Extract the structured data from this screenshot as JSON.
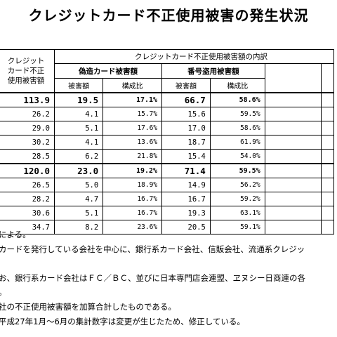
{
  "title": "クレジットカード不正使用被害の発生状況",
  "header": {
    "total_label": "クレジット\nカード不正\n使用被害額",
    "group_label": "クレジットカード不正使用被害額の内訳",
    "forged_label": "偽造カード被害額",
    "stolen_label": "番号盗用被害額",
    "amount_label": "被害額",
    "ratio_label": "構成比"
  },
  "rows": [
    {
      "total": "113.9",
      "forged": "19.5",
      "forged_pct": "17.1%",
      "stolen": "66.7",
      "stolen_pct": "58.6%"
    },
    {
      "total": "26.2",
      "forged": "4.1",
      "forged_pct": "15.7%",
      "stolen": "15.6",
      "stolen_pct": "59.5%"
    },
    {
      "total": "29.0",
      "forged": "5.1",
      "forged_pct": "17.6%",
      "stolen": "17.0",
      "stolen_pct": "58.6%"
    },
    {
      "total": "30.2",
      "forged": "4.1",
      "forged_pct": "13.6%",
      "stolen": "18.7",
      "stolen_pct": "61.9%"
    },
    {
      "total": "28.5",
      "forged": "6.2",
      "forged_pct": "21.8%",
      "stolen": "15.4",
      "stolen_pct": "54.0%"
    },
    {
      "total": "120.0",
      "forged": "23.0",
      "forged_pct": "19.2%",
      "stolen": "71.4",
      "stolen_pct": "59.5%"
    },
    {
      "total": "26.5",
      "forged": "5.0",
      "forged_pct": "18.9%",
      "stolen": "14.9",
      "stolen_pct": "56.2%"
    },
    {
      "total": "28.2",
      "forged": "4.7",
      "forged_pct": "16.7%",
      "stolen": "16.7",
      "stolen_pct": "59.2%"
    },
    {
      "total": "30.6",
      "forged": "5.1",
      "forged_pct": "16.7%",
      "stolen": "19.3",
      "stolen_pct": "63.1%"
    },
    {
      "total": "34.7",
      "forged": "8.2",
      "forged_pct": "23.6%",
      "stolen": "20.5",
      "stolen_pct": "59.1%"
    }
  ],
  "notes": [
    "による。",
    "カードを発行している会社を中心に、銀行系カード会社、信販会社、流通系クレジッ",
    "",
    "お、銀行系カード会社はＦＣ／ＢＣ、並びに日本専門店会連盟、ヱヌシー日商連の各",
    "。",
    "社の不正使用被害額を加算合計したものである。",
    "平成27年1月～6月の集計数字は変更が生じたため、修正している。"
  ]
}
